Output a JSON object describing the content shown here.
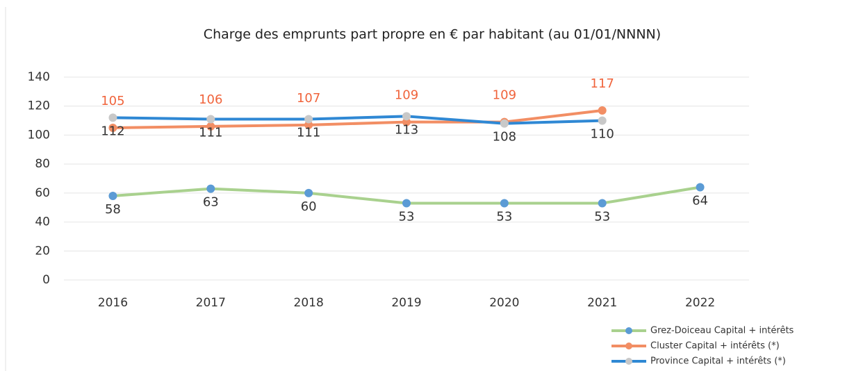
{
  "chart_data": {
    "type": "line",
    "title": "Charge des emprunts part propre en  € par habitant (au 01/01/NNNN)",
    "categories": [
      "2016",
      "2017",
      "2018",
      "2019",
      "2020",
      "2021",
      "2022"
    ],
    "series": [
      {
        "name": "Grez-Doiceau Capital + intérêts",
        "color": "#a9d18e",
        "marker_color": "#5b9bd5",
        "label_color": "#333333",
        "label_position": "below",
        "values": [
          58,
          63,
          60,
          53,
          53,
          53,
          64
        ]
      },
      {
        "name": "Cluster Capital + intérêts (*)",
        "color": "#f28e64",
        "marker_color": "#f28e64",
        "label_color": "#f0643c",
        "label_position": "above",
        "values": [
          105,
          106,
          107,
          109,
          109,
          117,
          null
        ]
      },
      {
        "name": "Province Capital + intérêts (*)",
        "color": "#2f88d4",
        "marker_color": "#c8c8c8",
        "label_color": "#333333",
        "label_position": "below",
        "values": [
          112,
          111,
          111,
          113,
          108,
          110,
          null
        ]
      }
    ],
    "ylim": [
      0,
      140
    ],
    "yticks": [
      0,
      20,
      40,
      60,
      80,
      100,
      120,
      140
    ],
    "grid": true,
    "legend": "lower right"
  }
}
